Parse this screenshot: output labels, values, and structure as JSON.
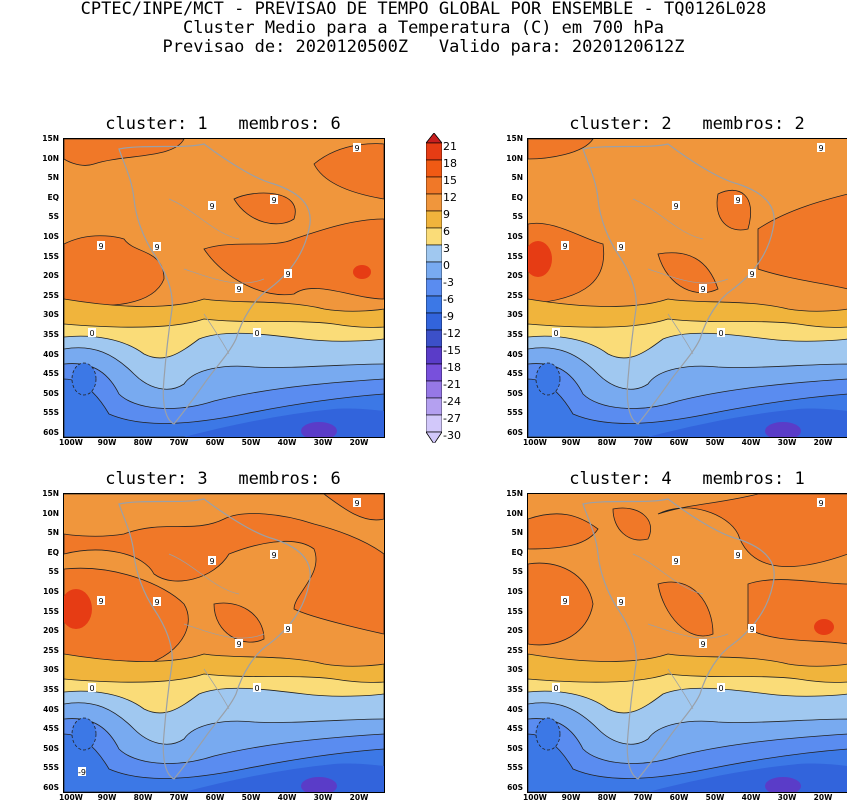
{
  "header": {
    "line1": "CPTEC/INPE/MCT - PREVISAO DE TEMPO GLOBAL POR ENSEMBLE - TQ0126L028",
    "line2": "Cluster Medio para a Temperatura (C) em 700 hPa",
    "line3": "Previsao de: 2020120500Z   Valido para: 2020120612Z"
  },
  "panels": [
    {
      "title": "cluster: 1   membros: 6",
      "labels": [
        "9",
        "9",
        "9",
        "9",
        "9",
        "9",
        "9",
        "0",
        "0"
      ]
    },
    {
      "title": "cluster: 2   membros: 2",
      "labels": [
        "9",
        "9",
        "9",
        "9",
        "9",
        "9",
        "9",
        "0",
        "0"
      ]
    },
    {
      "title": "cluster: 3   membros: 6",
      "labels": [
        "9",
        "9",
        "9",
        "9",
        "9",
        "9",
        "9",
        "0",
        "0",
        "-9"
      ]
    },
    {
      "title": "cluster: 4   membros: 1",
      "labels": [
        "9",
        "9",
        "9",
        "9",
        "9",
        "9",
        "9",
        "0",
        "0"
      ]
    }
  ],
  "axes": {
    "lat_labels": [
      "15N",
      "10N",
      "5N",
      "EQ",
      "5S",
      "10S",
      "15S",
      "20S",
      "25S",
      "30S",
      "35S",
      "40S",
      "45S",
      "50S",
      "55S",
      "60S"
    ],
    "lon_labels": [
      "100W",
      "90W",
      "80W",
      "70W",
      "60W",
      "50W",
      "40W",
      "30W",
      "20W"
    ]
  },
  "colorbar": {
    "labels": [
      "21",
      "18",
      "15",
      "12",
      "9",
      "6",
      "3",
      "0",
      "-3",
      "-6",
      "-9",
      "-12",
      "-15",
      "-18",
      "-21",
      "-24",
      "-27",
      "-30"
    ],
    "colors": [
      "#c81e1e",
      "#e63c14",
      "#f05a14",
      "#f07828",
      "#f0963c",
      "#f0b43c",
      "#fadc78",
      "#a0c8f0",
      "#78aaf0",
      "#5a8cf0",
      "#3c78e6",
      "#3264dc",
      "#3c50c8",
      "#5a3cc8",
      "#7850dc",
      "#9678e6",
      "#b4a0f0",
      "#d2c8fa"
    ]
  }
}
